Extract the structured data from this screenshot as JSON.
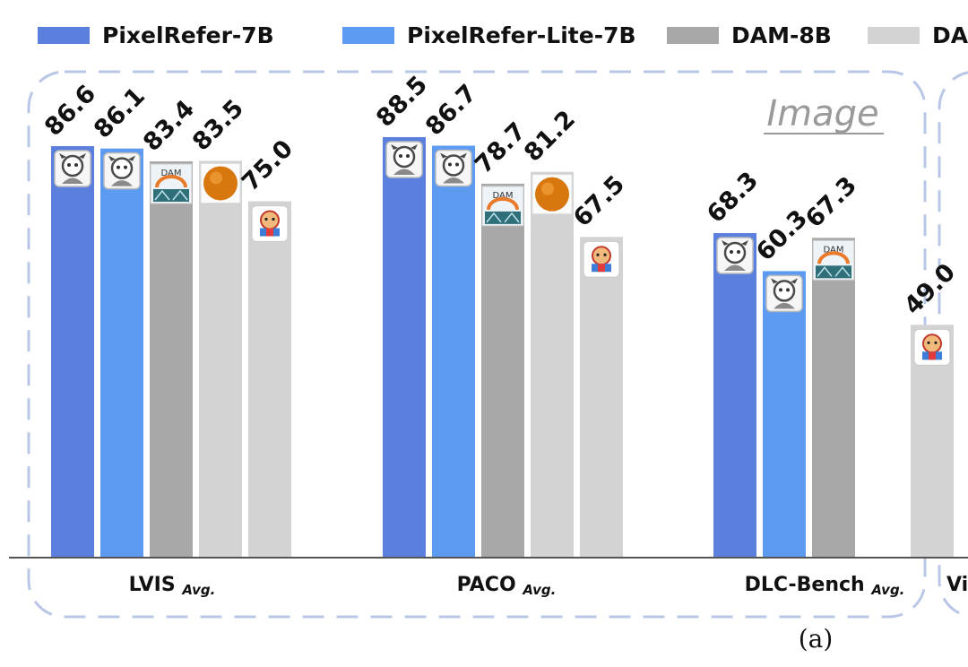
{
  "colors": {
    "series": [
      "#5b7fdc",
      "#5c9bf0",
      "#a8a8a8",
      "#d3d3d3",
      "#d3d3d3"
    ],
    "panel_border": "#b9c7e6",
    "axis": "#555555",
    "title": "#9a9a9a"
  },
  "chart_data": {
    "type": "bar",
    "panel_title": "Image",
    "caption": "(a)",
    "categories": [
      {
        "name": "LVIS",
        "sub": "Avg."
      },
      {
        "name": "PACO",
        "sub": "Avg."
      },
      {
        "name": "DLC-Bench",
        "sub": "Avg."
      }
    ],
    "clipped_category": "Vi",
    "legend": [
      "PixelRefer-7B",
      "PixelRefer-Lite-7B",
      "DAM-8B",
      "DA"
    ],
    "legend_placement": "top",
    "ylim": [
      0,
      100
    ],
    "series": [
      {
        "name": "PixelRefer-7B",
        "values": [
          86.6,
          88.5,
          68.3
        ],
        "icon": "pixelrefer-mascot-icon"
      },
      {
        "name": "PixelRefer-Lite-7B",
        "values": [
          86.1,
          86.7,
          60.3
        ],
        "icon": "pixelrefer-mascot-icon"
      },
      {
        "name": "DAM-8B",
        "values": [
          83.4,
          78.7,
          67.3
        ],
        "icon": "dam-logo-icon"
      },
      {
        "values": [
          83.5,
          81.2,
          null
        ],
        "icon": "orange-sphere-icon"
      },
      {
        "values": [
          75.0,
          67.5,
          49.0
        ],
        "icon": "colorful-mascot-icon"
      }
    ],
    "value_labels": [
      [
        "86.6",
        "88.5",
        "68.3"
      ],
      [
        "86.1",
        "86.7",
        "60.3"
      ],
      [
        "83.4",
        "78.7",
        "67.3"
      ],
      [
        "83.5",
        "81.2",
        ""
      ],
      [
        "75.0",
        "67.5",
        "49.0"
      ]
    ],
    "grid": false
  }
}
